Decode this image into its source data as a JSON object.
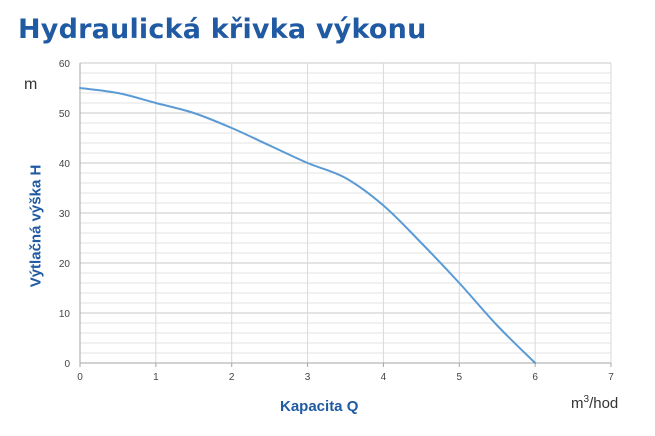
{
  "title": "Hydraulická křivka výkonu",
  "chart_data": {
    "type": "line",
    "ylabel": "Výtlačná výška H",
    "y_unit": "m",
    "xlabel": "Kapacita Q",
    "x_unit_base": "m",
    "x_unit_sup": "3",
    "x_unit_rest": "/hod",
    "xlim": [
      0,
      7
    ],
    "ylim": [
      0,
      60
    ],
    "x_ticks": [
      "0",
      "1",
      "2",
      "3",
      "4",
      "5",
      "6",
      "7"
    ],
    "y_ticks": [
      "0",
      "10",
      "20",
      "30",
      "40",
      "50",
      "60"
    ],
    "grid": true,
    "line_color": "#5b9bd5",
    "series": [
      {
        "x": [
          0,
          0.5,
          1,
          1.5,
          2,
          2.5,
          3,
          3.5,
          4,
          4.5,
          5,
          5.5,
          6
        ],
        "values": [
          55,
          54,
          52,
          50,
          47,
          43.5,
          40,
          37,
          31.5,
          24,
          16,
          7.5,
          0
        ]
      }
    ]
  }
}
